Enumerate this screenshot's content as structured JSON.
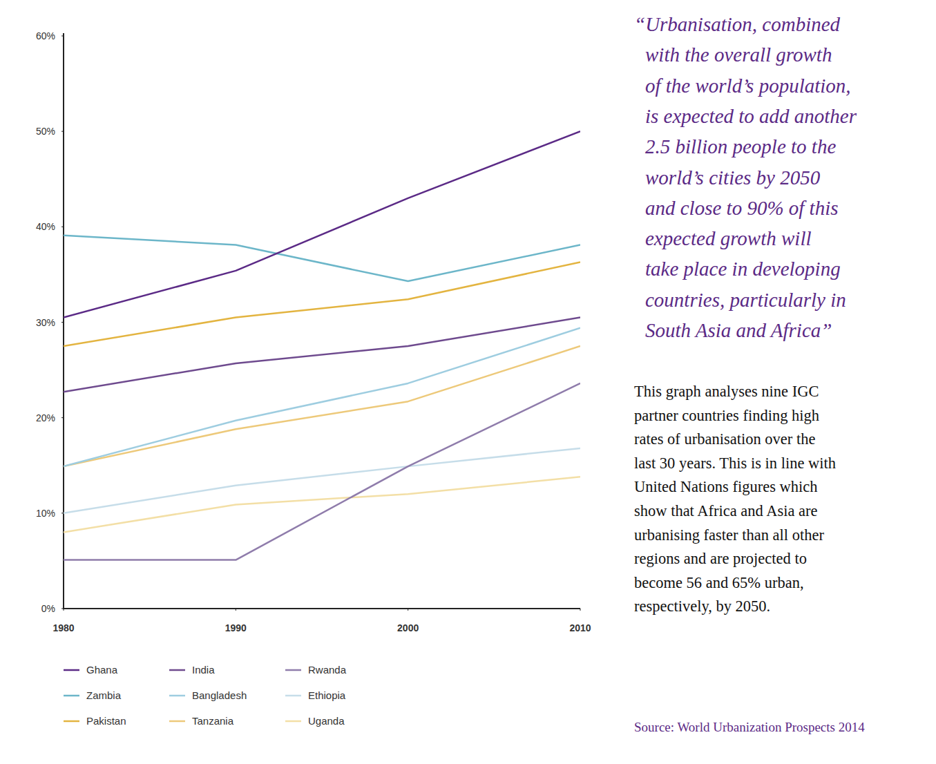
{
  "chart_data": {
    "type": "line",
    "x": [
      1980,
      1990,
      2000,
      2010
    ],
    "xlim": [
      1980,
      2010
    ],
    "xticks": [
      1980,
      1990,
      2000,
      2010
    ],
    "ylim": [
      0,
      60
    ],
    "yticks": [
      {
        "value": 0,
        "label": "0%"
      },
      {
        "value": 10,
        "label": "10%"
      },
      {
        "value": 20,
        "label": "20%"
      },
      {
        "value": 30,
        "label": "30%"
      },
      {
        "value": 40,
        "label": "40%"
      },
      {
        "value": 50,
        "label": "50%"
      },
      {
        "value": 60,
        "label": "60%"
      }
    ],
    "grid": false,
    "legend": "bottom-left",
    "series": [
      {
        "name": "Ghana",
        "color": "#5b2a86",
        "values": [
          30.5,
          35.4,
          43.0,
          50.0
        ]
      },
      {
        "name": "India",
        "color": "#6e4a8e",
        "values": [
          22.7,
          25.7,
          27.5,
          30.5
        ]
      },
      {
        "name": "Rwanda",
        "color": "#8f7cab",
        "values": [
          5.1,
          5.1,
          14.9,
          23.6
        ]
      },
      {
        "name": "Zambia",
        "color": "#6cb6c9",
        "values": [
          39.1,
          38.1,
          34.3,
          38.1
        ]
      },
      {
        "name": "Bangladesh",
        "color": "#9ecde0",
        "values": [
          14.9,
          19.7,
          23.6,
          29.4
        ]
      },
      {
        "name": "Ethiopia",
        "color": "#c6dde9",
        "values": [
          10.0,
          12.9,
          14.9,
          16.8
        ]
      },
      {
        "name": "Pakistan",
        "color": "#e3b440",
        "values": [
          27.5,
          30.5,
          32.4,
          36.3
        ]
      },
      {
        "name": "Tanzania",
        "color": "#edc97a",
        "values": [
          14.9,
          18.8,
          21.7,
          27.5
        ]
      },
      {
        "name": "Uganda",
        "color": "#f3dfa6",
        "values": [
          8.0,
          10.9,
          12.0,
          13.8
        ]
      }
    ],
    "annotations": {
      "quote": [
        "“Urbanisation, combined",
        "with the overall growth",
        "of the world’s population,",
        "is expected to add another",
        "2.5 billion people to the",
        "world’s cities by 2050",
        "and close to 90% of this",
        "expected growth will",
        "take place in developing",
        "countries, particularly in",
        "South Asia and Africa”"
      ],
      "description": [
        "This graph analyses nine IGC",
        "partner countries finding high",
        "rates of urbanisation over the",
        "last 30 years. This is in line with",
        "United Nations figures which",
        "show that Africa and Asia are",
        "urbanising faster than all other",
        "regions and are projected to",
        "become 56 and 65% urban,",
        "respectively, by 2050."
      ],
      "source": "Source: World Urbanization Prospects 2014"
    }
  }
}
